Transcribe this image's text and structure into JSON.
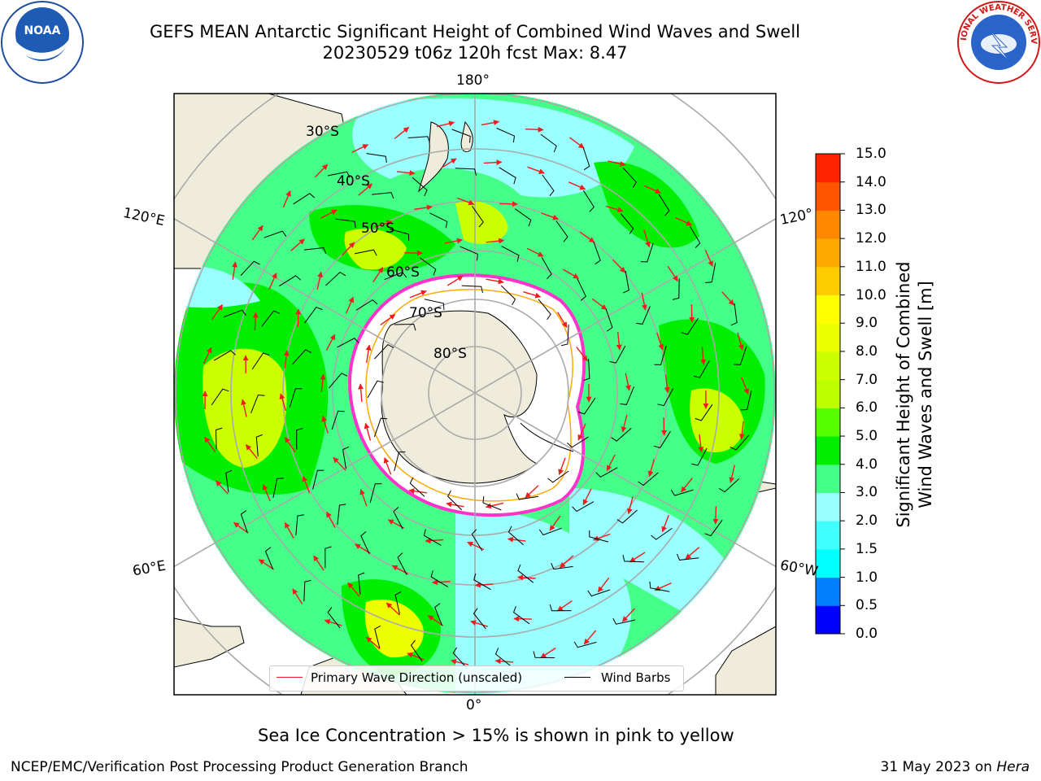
{
  "title": {
    "line1": "GEFS MEAN Antarctic Significant Height of Combined Wind Waves and Swell",
    "line2": "20230529 t06z 120h fcst   Max: 8.47"
  },
  "logos": {
    "left": {
      "text": "NOAA",
      "icon": "noaa-logo-icon"
    },
    "right": {
      "text": "NATIONAL WEATHER SERVICE",
      "icon": "nws-logo-icon"
    }
  },
  "map": {
    "projection": "south-polar-stereographic",
    "longitude_labels": {
      "top": "180°",
      "bottom": "0°",
      "left_upper": "120°E",
      "left_lower": "60°E",
      "right_upper": "120°",
      "right_lower": "60°W"
    },
    "latitude_labels": [
      "30°S",
      "40°S",
      "50°S",
      "60°S",
      "70°S",
      "80°S"
    ],
    "colors": {
      "land": "#efecdc",
      "ice": "#ffffff",
      "grid": "#aaaaaa",
      "arrow": "#ee1c1c",
      "barb": "#000000"
    }
  },
  "legend": {
    "primary_wave_direction": "Primary Wave Direction (unscaled)",
    "wind_barbs": "Wind Barbs"
  },
  "colorbar": {
    "title": "Significant Height of Combined Wind Waves and Swell [m]",
    "title_line1": "Significant Height of Combined",
    "title_line2": "Wind Waves and Swell [m]",
    "ticks": [
      "0.0",
      "0.5",
      "1.0",
      "1.5",
      "2.0",
      "3.0",
      "4.0",
      "5.0",
      "6.0",
      "7.0",
      "8.0",
      "9.0",
      "10.0",
      "11.0",
      "12.0",
      "13.0",
      "14.0",
      "15.0"
    ],
    "colors": [
      "#0000ff",
      "#0080ff",
      "#00ffff",
      "#40ffff",
      "#99ffff",
      "#44ff88",
      "#00ee00",
      "#55ff00",
      "#bbff00",
      "#ccff00",
      "#eeff00",
      "#ffff00",
      "#ffcc00",
      "#ffaa00",
      "#ff8800",
      "#ff5500",
      "#ff2200"
    ]
  },
  "caption": "Sea Ice Concentration > 15% is shown in pink to yellow",
  "footer": {
    "left": "NCEP/EMC/Verification Post Processing Product Generation Branch",
    "right_date": "31 May 2023 on ",
    "right_machine": "Hera"
  }
}
